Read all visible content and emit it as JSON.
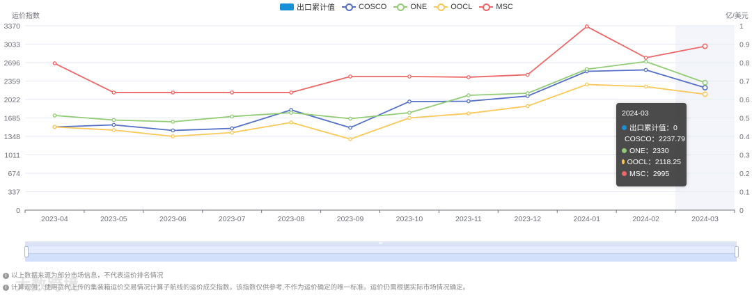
{
  "chart_data": {
    "type": "line",
    "title": "",
    "categories": [
      "2023-04",
      "2023-05",
      "2023-06",
      "2023-07",
      "2023-08",
      "2023-09",
      "2023-10",
      "2023-11",
      "2023-12",
      "2024-01",
      "2024-02",
      "2024-03"
    ],
    "y_left": {
      "name": "运价指数",
      "ticks": [
        0,
        337,
        674,
        1011,
        1348,
        1685,
        2022,
        2359,
        2696,
        3033,
        3370
      ],
      "range": [
        0,
        3370
      ]
    },
    "y_right": {
      "name": "亿/美元",
      "ticks": [
        0,
        0.1,
        0.2,
        0.3,
        0.4,
        0.5,
        0.6,
        0.7,
        0.8,
        0.9,
        1
      ],
      "range": [
        0,
        1
      ]
    },
    "series": [
      {
        "name": "出口累计值",
        "type": "bar",
        "axis": "right",
        "color": "#1890d8",
        "values": [
          0,
          0,
          0,
          0,
          0,
          0,
          0,
          0,
          0,
          0,
          0,
          0
        ]
      },
      {
        "name": "COSCO",
        "type": "line",
        "axis": "left",
        "color": "#5470c6",
        "values": [
          1520,
          1558,
          1456,
          1494,
          1831,
          1507,
          1984,
          1990,
          2085,
          2537,
          2563,
          2237.79
        ]
      },
      {
        "name": "ONE",
        "type": "line",
        "axis": "left",
        "color": "#91cc75",
        "values": [
          1730,
          1647,
          1615,
          1711,
          1780,
          1672,
          1780,
          2098,
          2136,
          2575,
          2715,
          2330
        ]
      },
      {
        "name": "OOCL",
        "type": "line",
        "axis": "left",
        "color": "#fac858",
        "values": [
          1520,
          1462,
          1348,
          1418,
          1602,
          1297,
          1685,
          1767,
          1901,
          2296,
          2257,
          2118.25
        ]
      },
      {
        "name": "MSC",
        "type": "line",
        "axis": "left",
        "color": "#ee6666",
        "values": [
          2683,
          2150,
          2150,
          2150,
          2150,
          2442,
          2442,
          2430,
          2474,
          3357,
          2785,
          2995
        ]
      }
    ],
    "grid": true,
    "legend_position": "top-center",
    "highlighted_category": "2024-03"
  },
  "legend": [
    {
      "label": "出口累计值",
      "kind": "bar",
      "color": "#1890d8"
    },
    {
      "label": "COSCO",
      "kind": "line",
      "color": "#5470c6"
    },
    {
      "label": "ONE",
      "kind": "line",
      "color": "#91cc75"
    },
    {
      "label": "OOCL",
      "kind": "line",
      "color": "#fac858"
    },
    {
      "label": "MSC",
      "kind": "line",
      "color": "#ee6666"
    }
  ],
  "axes": {
    "left_name": "运价指数",
    "right_name": "亿/美元"
  },
  "tooltip": {
    "title": "2024-03",
    "rows": [
      {
        "label": "出口累计值：0",
        "color": "#1890d8"
      },
      {
        "label": "COSCO：2237.79",
        "color": "#5470c6"
      },
      {
        "label": "ONE：2330",
        "color": "#91cc75"
      },
      {
        "label": "OOCL：2118.25",
        "color": "#fac858"
      },
      {
        "label": "MSC：2995",
        "color": "#ee6666"
      }
    ]
  },
  "notes": [
    "以上数据来源为部分市场信息，不代表运价排名情况",
    "计算规则：使用货代上传的集装箱运价交易情况计算子航线的运价成交指数。该指数仅供参考,不作为运价确定的唯一标准。运价仍需根据实际市场情况确定。"
  ],
  "watermark": "大数跨境"
}
